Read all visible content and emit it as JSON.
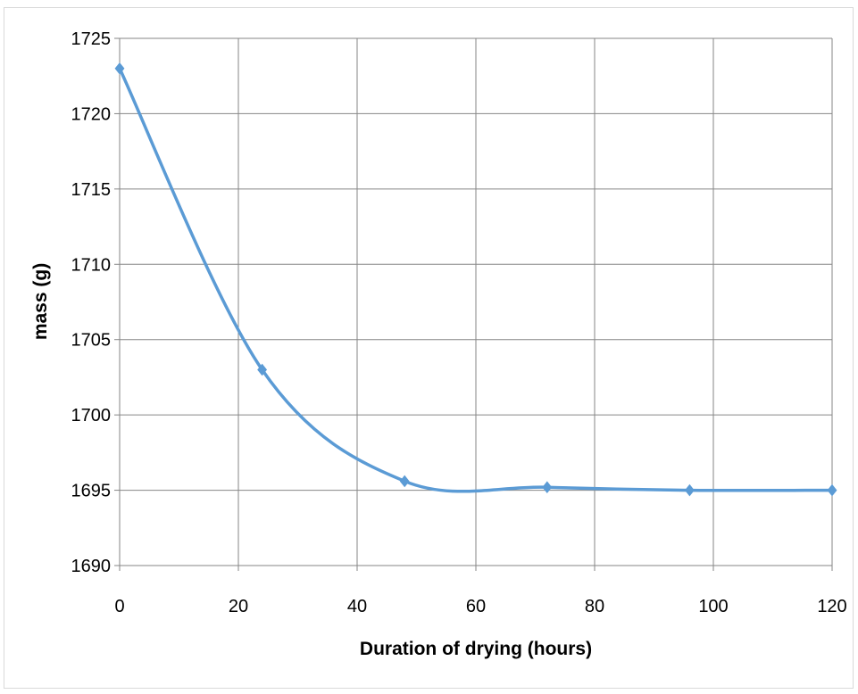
{
  "chart_data": {
    "type": "line",
    "title": "",
    "xlabel": "Duration of drying (hours)",
    "ylabel": "mass (g)",
    "xlim": [
      0,
      120
    ],
    "ylim": [
      1690,
      1725
    ],
    "x_ticks": [
      "0",
      "20",
      "40",
      "60",
      "80",
      "100",
      "120"
    ],
    "y_ticks": [
      "1690",
      "1695",
      "1700",
      "1705",
      "1710",
      "1715",
      "1720",
      "1725"
    ],
    "grid": true,
    "legend": "none",
    "smooth": true,
    "marker": "diamond",
    "series": [
      {
        "color": "#5b9bd5",
        "x": [
          0,
          24,
          48,
          72,
          96,
          120
        ],
        "y": [
          1723,
          1703,
          1695.6,
          1695.2,
          1695,
          1695
        ]
      }
    ]
  }
}
